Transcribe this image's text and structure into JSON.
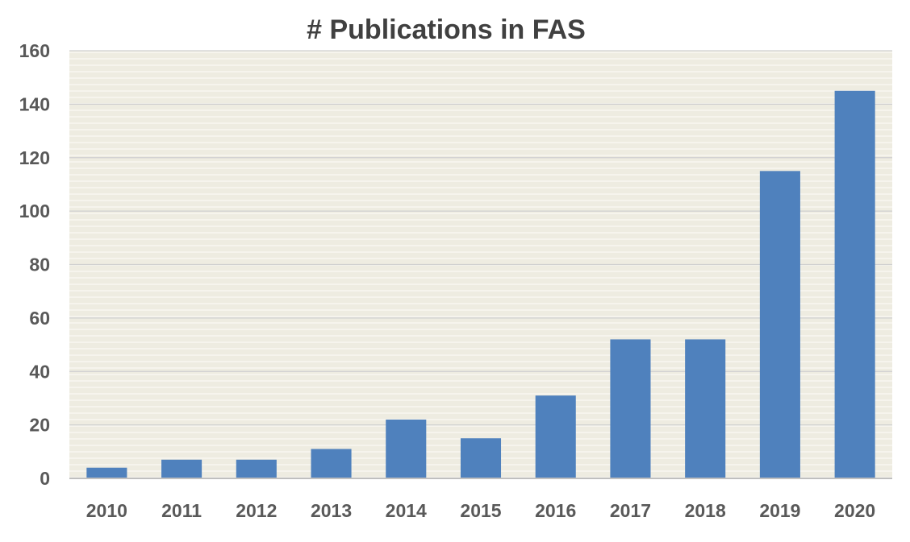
{
  "chart_data": {
    "type": "bar",
    "title": "# Publications in FAS",
    "xlabel": "",
    "ylabel": "",
    "categories": [
      "2010",
      "2011",
      "2012",
      "2013",
      "2014",
      "2015",
      "2016",
      "2017",
      "2018",
      "2019",
      "2020"
    ],
    "values": [
      4,
      7,
      7,
      11,
      22,
      15,
      31,
      52,
      52,
      115,
      145
    ],
    "ylim": [
      0,
      160
    ],
    "yticks": [
      0,
      20,
      40,
      60,
      80,
      100,
      120,
      140,
      160
    ],
    "grid": true,
    "legend": "none",
    "colors": {
      "bar": "#4f81bd",
      "plot_background": "#eeece1",
      "stripe": "#f6f4ed",
      "gridline": "#cfcfcf",
      "axis_line": "#bfbfbf",
      "text": "#595959"
    }
  }
}
